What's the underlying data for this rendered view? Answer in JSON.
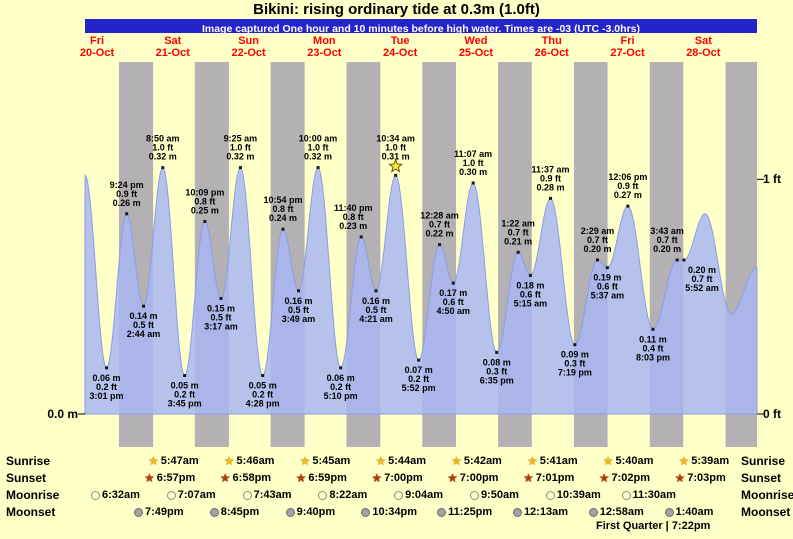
{
  "title": "Bikini: rising ordinary tide at 0.3m (1.0ft)",
  "subtitle": "Image captured One hour and 10 minutes before high water. Times are -03 (UTC -3.0hrs)",
  "days": [
    {
      "name": "Fri",
      "date": "20-Oct"
    },
    {
      "name": "Sat",
      "date": "21-Oct"
    },
    {
      "name": "Sun",
      "date": "22-Oct"
    },
    {
      "name": "Mon",
      "date": "23-Oct"
    },
    {
      "name": "Tue",
      "date": "24-Oct"
    },
    {
      "name": "Wed",
      "date": "25-Oct"
    },
    {
      "name": "Thu",
      "date": "26-Oct"
    },
    {
      "name": "Fri",
      "date": "27-Oct"
    },
    {
      "name": "Sat",
      "date": "28-Oct"
    }
  ],
  "axis": {
    "left_zero": "0.0 m",
    "right_one_ft": "1 ft",
    "right_zero_ft": "0 ft"
  },
  "chart_data": {
    "type": "area",
    "title": "Tide height curve Fri 20-Oct to Sat 28-Oct",
    "x_unit": "hours from Fri 20-Oct 00:00",
    "y_unit": "m",
    "ylim_m": [
      0,
      0.35
    ],
    "x_range_hours": [
      8.2,
      221
    ],
    "colors": {
      "day_band": "#ffffc8",
      "night_band": "#b3b1b3",
      "tide_fill": "#a9b6f2",
      "tide_stroke": "#8d9ce8",
      "star": "#ffe93c"
    },
    "night_bands": [
      [
        18.95,
        29.78
      ],
      [
        42.97,
        53.77
      ],
      [
        66.98,
        77.75
      ],
      [
        91.0,
        101.73
      ],
      [
        115.0,
        125.7
      ],
      [
        139.02,
        149.68
      ],
      [
        163.03,
        173.67
      ],
      [
        187.05,
        197.65
      ],
      [
        211.05,
        221.0
      ]
    ],
    "events": [
      {
        "t": 8.2,
        "h": 0.31,
        "kind": "edge"
      },
      {
        "t": 15.02,
        "h": 0.06,
        "kind": "low",
        "lines": [
          "0.06 m",
          "0.2 ft",
          "3:01 pm"
        ]
      },
      {
        "t": 21.4,
        "h": 0.26,
        "kind": "high",
        "lines": [
          "9:24 pm",
          "0.9 ft",
          "0.26 m"
        ]
      },
      {
        "t": 26.73,
        "h": 0.14,
        "kind": "low",
        "lines": [
          "0.14 m",
          "0.5 ft",
          "2:44 am"
        ]
      },
      {
        "t": 32.83,
        "h": 0.32,
        "kind": "high",
        "lines": [
          "8:50 am",
          "1.0 ft",
          "0.32 m"
        ]
      },
      {
        "t": 39.75,
        "h": 0.05,
        "kind": "low",
        "lines": [
          "0.05 m",
          "0.2 ft",
          "3:45 pm"
        ]
      },
      {
        "t": 46.15,
        "h": 0.25,
        "kind": "high",
        "lines": [
          "10:09 pm",
          "0.8 ft",
          "0.25 m"
        ]
      },
      {
        "t": 51.28,
        "h": 0.15,
        "kind": "low",
        "lines": [
          "0.15 m",
          "0.5 ft",
          "3:17 am"
        ]
      },
      {
        "t": 57.42,
        "h": 0.32,
        "kind": "high",
        "lines": [
          "9:25 am",
          "1.0 ft",
          "0.32 m"
        ]
      },
      {
        "t": 64.47,
        "h": 0.05,
        "kind": "low",
        "lines": [
          "0.05 m",
          "0.2 ft",
          "4:28 pm"
        ]
      },
      {
        "t": 70.9,
        "h": 0.24,
        "kind": "high",
        "lines": [
          "10:54 pm",
          "0.8 ft",
          "0.24 m"
        ]
      },
      {
        "t": 75.82,
        "h": 0.16,
        "kind": "low",
        "lines": [
          "0.16 m",
          "0.5 ft",
          "3:49 am"
        ]
      },
      {
        "t": 82.0,
        "h": 0.32,
        "kind": "high",
        "lines": [
          "10:00 am",
          "1.0 ft",
          "0.32 m"
        ]
      },
      {
        "t": 89.17,
        "h": 0.06,
        "kind": "low",
        "lines": [
          "0.06 m",
          "0.2 ft",
          "5:10 pm"
        ]
      },
      {
        "t": 95.67,
        "h": 0.23,
        "kind": "high",
        "lines": [
          "11:40 pm",
          "0.8 ft",
          "0.23 m"
        ],
        "label_dx": -8
      },
      {
        "t": 100.35,
        "h": 0.16,
        "kind": "low",
        "lines": [
          "0.16 m",
          "0.5 ft",
          "4:21 am"
        ]
      },
      {
        "t": 106.57,
        "h": 0.31,
        "kind": "high",
        "lines": [
          "10:34 am",
          "1.0 ft",
          "0.31 m"
        ],
        "star": true
      },
      {
        "t": 113.87,
        "h": 0.07,
        "kind": "low",
        "lines": [
          "0.07 m",
          "0.2 ft",
          "5:52 pm"
        ]
      },
      {
        "t": 120.47,
        "h": 0.22,
        "kind": "high",
        "lines": [
          "12:28 am",
          "0.7 ft",
          "0.22 m"
        ]
      },
      {
        "t": 124.83,
        "h": 0.17,
        "kind": "low",
        "lines": [
          "0.17 m",
          "0.6 ft",
          "4:50 am"
        ]
      },
      {
        "t": 131.12,
        "h": 0.3,
        "kind": "high",
        "lines": [
          "11:07 am",
          "1.0 ft",
          "0.30 m"
        ]
      },
      {
        "t": 138.58,
        "h": 0.08,
        "kind": "low",
        "lines": [
          "0.08 m",
          "0.3 ft",
          "6:35 pm"
        ]
      },
      {
        "t": 145.37,
        "h": 0.21,
        "kind": "high",
        "lines": [
          "1:22 am",
          "0.7 ft",
          "0.21 m"
        ]
      },
      {
        "t": 149.25,
        "h": 0.18,
        "kind": "low",
        "lines": [
          "0.18 m",
          "0.6 ft",
          "5:15 am"
        ]
      },
      {
        "t": 155.62,
        "h": 0.28,
        "kind": "high",
        "lines": [
          "11:37 am",
          "0.9 ft",
          "0.28 m"
        ]
      },
      {
        "t": 163.32,
        "h": 0.09,
        "kind": "low",
        "lines": [
          "0.09 m",
          "0.3 ft",
          "7:19 pm"
        ]
      },
      {
        "t": 170.48,
        "h": 0.2,
        "kind": "high",
        "lines": [
          "2:29 am",
          "0.7 ft",
          "0.20 m"
        ]
      },
      {
        "t": 173.62,
        "h": 0.19,
        "kind": "low",
        "lines": [
          "0.19 m",
          "0.6 ft",
          "5:37 am"
        ]
      },
      {
        "t": 180.1,
        "h": 0.27,
        "kind": "high",
        "lines": [
          "12:06 pm",
          "0.9 ft",
          "0.27 m"
        ]
      },
      {
        "t": 188.05,
        "h": 0.11,
        "kind": "low",
        "lines": [
          "0.11 m",
          "0.4 ft",
          "8:03 pm"
        ]
      },
      {
        "t": 195.72,
        "h": 0.2,
        "kind": "high",
        "lines": [
          "3:43 am",
          "0.7 ft",
          "0.20 m"
        ],
        "label_dx": -10
      },
      {
        "t": 197.87,
        "h": 0.2,
        "kind": "low",
        "lines": [
          "0.20 m",
          "0.7 ft",
          "5:52 am"
        ],
        "label_dx": 18
      },
      {
        "t": 204.6,
        "h": 0.26,
        "kind": "edge"
      },
      {
        "t": 212.8,
        "h": 0.13,
        "kind": "edge"
      },
      {
        "t": 221.0,
        "h": 0.19,
        "kind": "edge"
      }
    ]
  },
  "astro": {
    "rows": [
      {
        "label": "Sunrise",
        "icon": "sunrise-star-icon",
        "times": [
          "5:47am",
          "5:46am",
          "5:45am",
          "5:44am",
          "5:42am",
          "5:41am",
          "5:40am",
          "5:39am"
        ]
      },
      {
        "label": "Sunset",
        "icon": "sunset-star-icon",
        "times": [
          "6:57pm",
          "6:58pm",
          "6:59pm",
          "7:00pm",
          "7:00pm",
          "7:01pm",
          "7:02pm",
          "7:03pm"
        ]
      },
      {
        "label": "Moonrise",
        "icon": "moonrise-circle-icon",
        "times": [
          "6:32am",
          "7:07am",
          "7:43am",
          "8:22am",
          "9:04am",
          "9:50am",
          "10:39am",
          "11:30am"
        ]
      },
      {
        "label": "Moonset",
        "icon": "moonset-circle-icon",
        "times": [
          "7:49pm",
          "8:45pm",
          "9:40pm",
          "10:34pm",
          "11:25pm",
          "12:13am",
          "12:58am",
          "1:40am"
        ]
      }
    ],
    "footnote": "First Quarter | 7:22pm"
  }
}
